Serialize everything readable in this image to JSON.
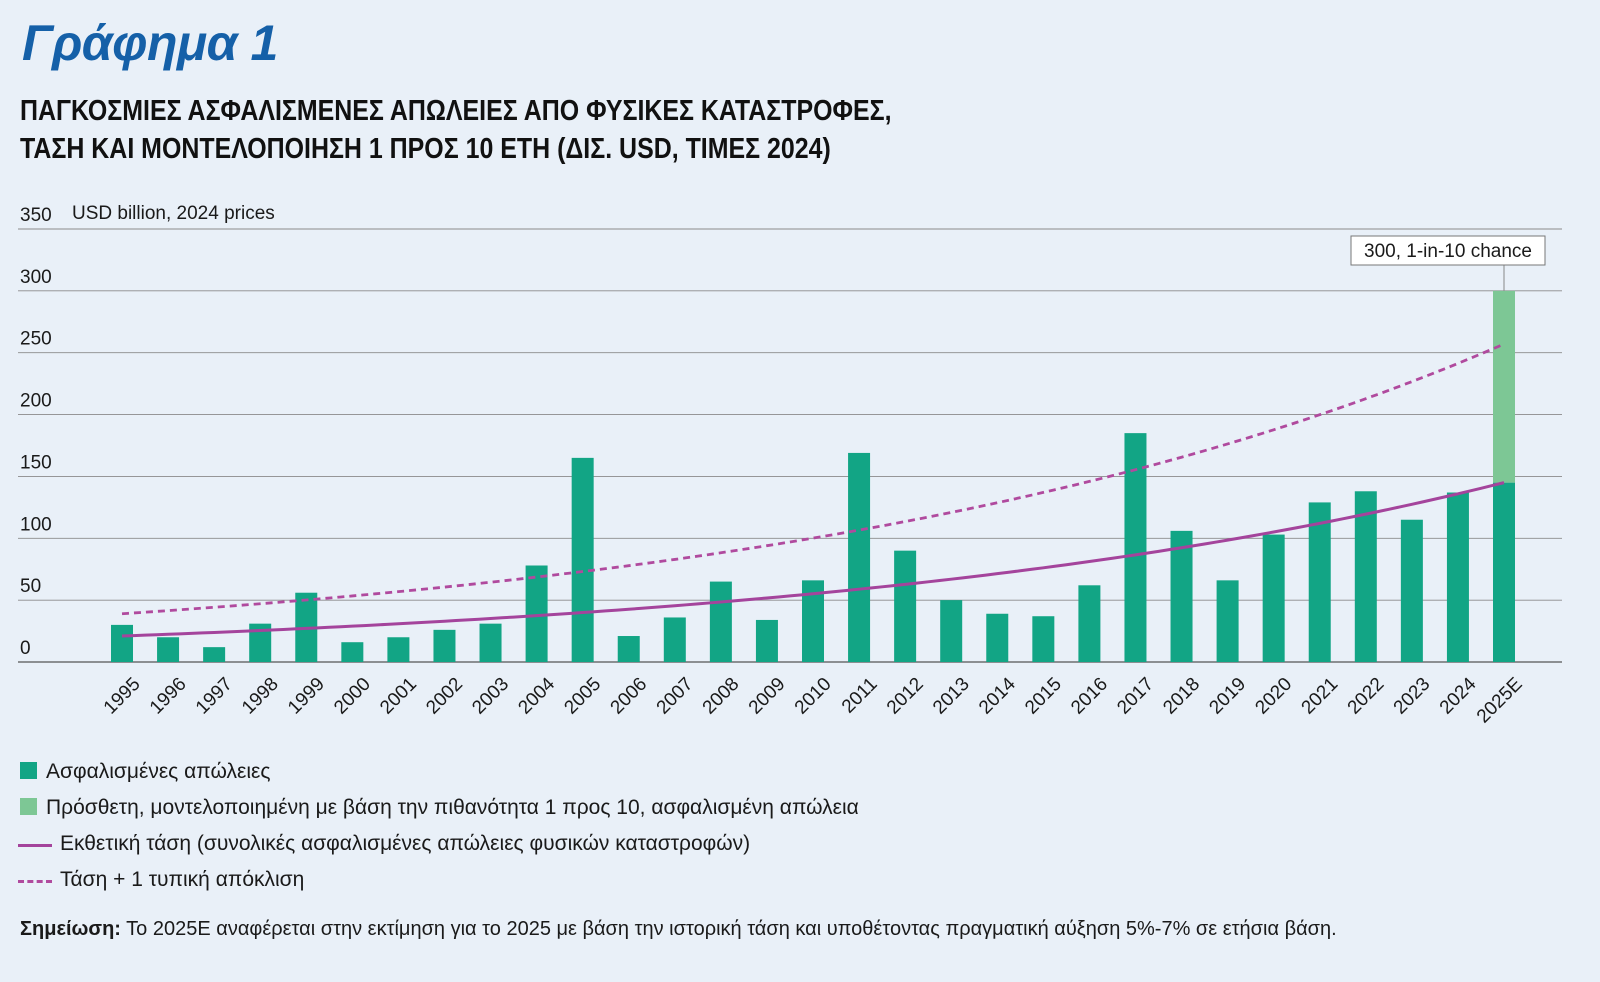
{
  "header": {
    "title": "Γράφημα 1",
    "subtitle_line1": "ΠΑΓΚΟΣΜΙΕΣ ΑΣΦΑΛΙΣΜΕΝΕΣ ΑΠΩΛΕΙΕΣ ΑΠΟ ΦΥΣΙΚΕΣ ΚΑΤΑΣΤΡΟΦΕΣ,",
    "subtitle_line2": "ΤΑΣΗ ΚΑΙ ΜΟΝΤΕΛΟΠΟΙΗΣΗ 1 ΠΡΟΣ 10 ΕΤΗ (ΔΙΣ. USD, ΤΙΜΕΣ 2024)"
  },
  "chart_data": {
    "type": "bar",
    "ylabel": "USD billion, 2024 prices",
    "ylim": [
      0,
      350
    ],
    "yticks": [
      0,
      50,
      100,
      150,
      200,
      250,
      300,
      350
    ],
    "grid": true,
    "categories": [
      "1995",
      "1996",
      "1997",
      "1998",
      "1999",
      "2000",
      "2001",
      "2002",
      "2003",
      "2004",
      "2005",
      "2006",
      "2007",
      "2008",
      "2009",
      "2010",
      "2011",
      "2012",
      "2013",
      "2014",
      "2015",
      "2016",
      "2017",
      "2018",
      "2019",
      "2020",
      "2021",
      "2022",
      "2023",
      "2024",
      "2025E"
    ],
    "series": [
      {
        "name": "Ασφαλισμένες απώλειες",
        "color": "#12a585",
        "values": [
          30,
          20,
          12,
          31,
          56,
          16,
          20,
          26,
          31,
          78,
          165,
          21,
          36,
          65,
          34,
          66,
          169,
          90,
          50,
          39,
          37,
          62,
          185,
          106,
          66,
          103,
          129,
          138,
          115,
          137,
          145
        ]
      },
      {
        "name": "Πρόσθετη, μοντελοποιημένη με βάση την πιθανότητα 1 προς 10, ασφαλισμένη απώλεια",
        "color": "#7dc795",
        "values": [
          0,
          0,
          0,
          0,
          0,
          0,
          0,
          0,
          0,
          0,
          0,
          0,
          0,
          0,
          0,
          0,
          0,
          0,
          0,
          0,
          0,
          0,
          0,
          0,
          0,
          0,
          0,
          0,
          0,
          0,
          155
        ]
      }
    ],
    "trend": {
      "name": "Εκθετική τάση (συνολικές ασφαλισμένες απώλειες φυσικών καταστροφών)",
      "color": "#a4449c",
      "start": 21,
      "end": 145
    },
    "trend_plus_sd": {
      "name": "Τάση + 1 τυπική απόκλιση",
      "color": "#b04a9e",
      "start": 39,
      "end": 257
    },
    "annotation": {
      "text": "300, 1-in-10 chance",
      "category": "2025E",
      "value": 300
    }
  },
  "note": {
    "label": "Σημείωση:",
    "text": " Το 2025E αναφέρεται στην εκτίμηση για το 2025 με βάση την ιστορική τάση και υποθέτοντας πραγματική αύξηση 5%-7% σε ετήσια βάση."
  }
}
